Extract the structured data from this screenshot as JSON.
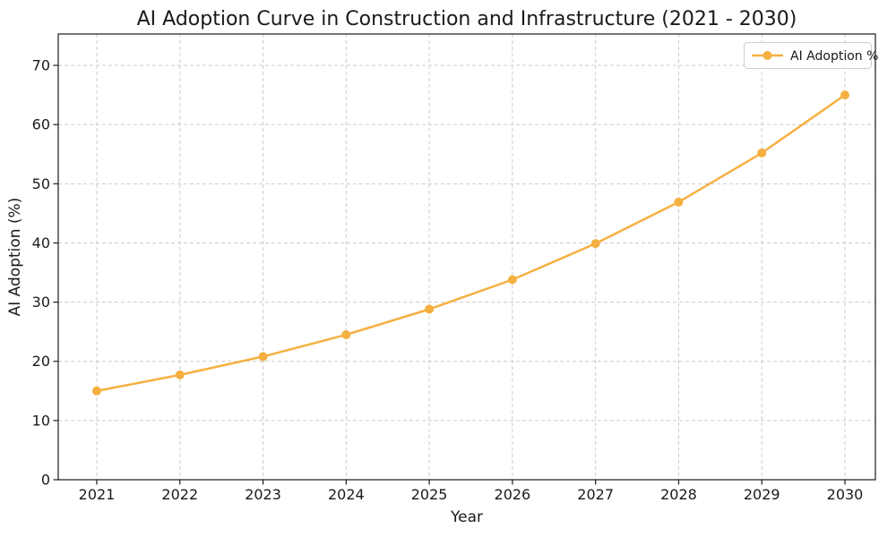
{
  "figure": {
    "background": "#ffffff"
  },
  "chart_data": {
    "type": "line",
    "title": "AI Adoption Curve in Construction and Infrastructure (2021 - 2030)",
    "xlabel": "Year",
    "ylabel": "AI Adoption (%)",
    "x": [
      2021,
      2022,
      2023,
      2024,
      2025,
      2026,
      2027,
      2028,
      2029,
      2030
    ],
    "series": [
      {
        "name": "AI Adoption %",
        "values": [
          15.0,
          17.7,
          20.8,
          24.5,
          28.8,
          33.8,
          39.9,
          46.9,
          55.2,
          65.0
        ],
        "color": "#f5b041",
        "marker": "circle",
        "line_width": 2.5,
        "marker_size": 5
      }
    ],
    "ylim": [
      0,
      75.3
    ],
    "yticks": [
      0,
      10,
      20,
      30,
      40,
      50,
      60,
      70
    ],
    "grid": {
      "style": "dashed",
      "color": "#cccccc"
    },
    "legend": {
      "position": "upper right"
    },
    "axis_color": "#1a1a1a",
    "text_color": "#1a1a1a"
  }
}
